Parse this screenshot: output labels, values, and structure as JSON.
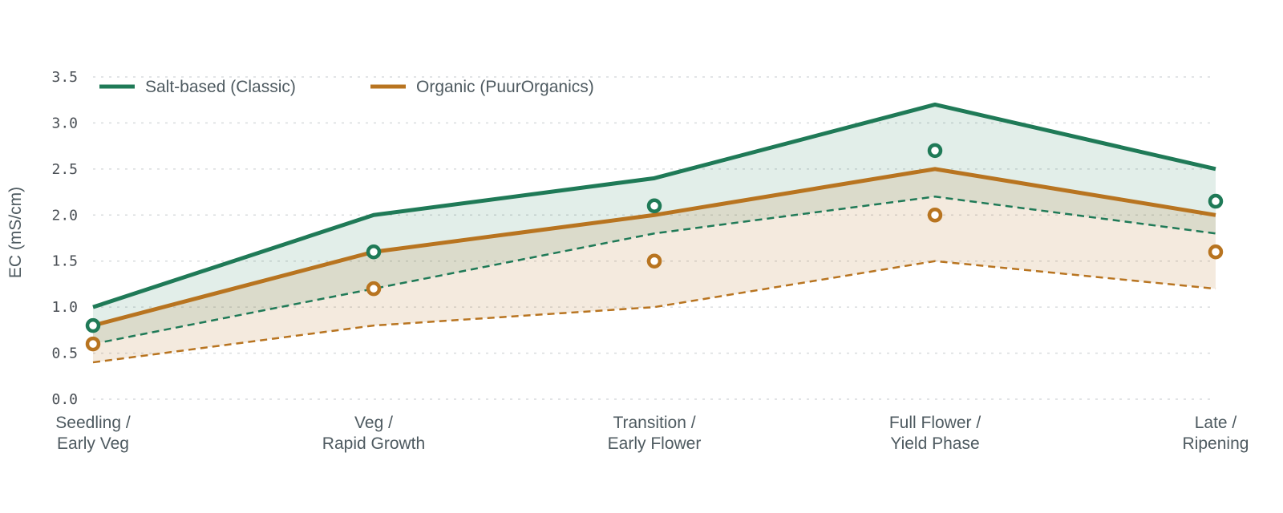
{
  "chart_data": {
    "type": "area",
    "ylabel": "EC  (mS/cm)",
    "ylim": [
      0,
      3.5
    ],
    "yticks": [
      0.0,
      0.5,
      1.0,
      1.5,
      2.0,
      2.5,
      3.0,
      3.5
    ],
    "grid": true,
    "legend_position": "top-left",
    "categories": [
      [
        "Seedling /",
        "Early Veg"
      ],
      [
        "Veg /",
        "Rapid Growth"
      ],
      [
        "Transition /",
        "Early Flower"
      ],
      [
        "Full Flower /",
        "Yield Phase"
      ],
      [
        "Late /",
        "Ripening"
      ]
    ],
    "series": [
      {
        "name": "Salt-based (Classic)",
        "color": "#1f7a57",
        "fill": "#e2efe9",
        "max": [
          1.0,
          2.0,
          2.4,
          3.2,
          2.5
        ],
        "min": [
          0.6,
          1.2,
          1.8,
          2.2,
          1.8
        ],
        "target": [
          0.8,
          1.6,
          2.1,
          2.7,
          2.15
        ]
      },
      {
        "name": "Organic (PuurOrganics)",
        "color": "#b87420",
        "fill": "#f3e9dc",
        "max": [
          0.8,
          1.6,
          2.0,
          2.5,
          2.0
        ],
        "min": [
          0.4,
          0.8,
          1.0,
          1.5,
          1.2
        ],
        "target": [
          0.6,
          1.2,
          1.5,
          2.0,
          1.6
        ]
      }
    ]
  }
}
